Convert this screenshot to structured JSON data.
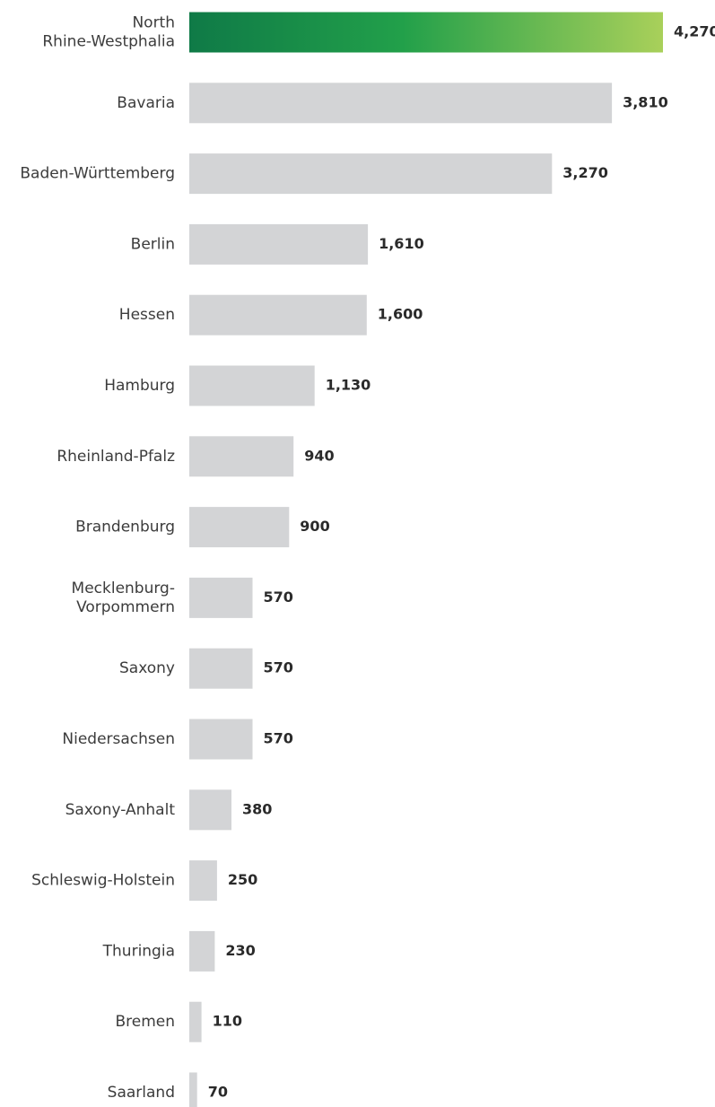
{
  "chart_data": {
    "type": "bar",
    "orientation": "horizontal",
    "categories": [
      [
        "North",
        "Rhine-Westphalia"
      ],
      [
        "Bavaria"
      ],
      [
        "Baden-Württemberg"
      ],
      [
        "Berlin"
      ],
      [
        "Hessen"
      ],
      [
        "Hamburg"
      ],
      [
        "Rheinland-Pfalz"
      ],
      [
        "Brandenburg"
      ],
      [
        "Mecklenburg-",
        "Vorpommern"
      ],
      [
        "Saxony"
      ],
      [
        "Niedersachsen"
      ],
      [
        "Saxony-Anhalt"
      ],
      [
        "Schleswig-Holstein"
      ],
      [
        "Thuringia"
      ],
      [
        "Bremen"
      ],
      [
        "Saarland"
      ]
    ],
    "values": [
      4270,
      3810,
      3270,
      1610,
      1600,
      1130,
      940,
      900,
      570,
      570,
      570,
      380,
      250,
      230,
      110,
      70
    ],
    "value_labels": [
      "4,270",
      "3,810",
      "3,270",
      "1,610",
      "1,600",
      "1,130",
      "940",
      "900",
      "570",
      "570",
      "570",
      "380",
      "250",
      "230",
      "110",
      "70"
    ],
    "xlim": [
      0,
      4270
    ],
    "grid": false,
    "legend": "none",
    "colors": {
      "highlight_start": "#0f7a47",
      "highlight_mid": "#22a04a",
      "highlight_end": "#a9d05a",
      "default_bar": "#d3d4d6",
      "label_text": "#3c3c3c",
      "value_text": "#2a2a2a"
    }
  }
}
